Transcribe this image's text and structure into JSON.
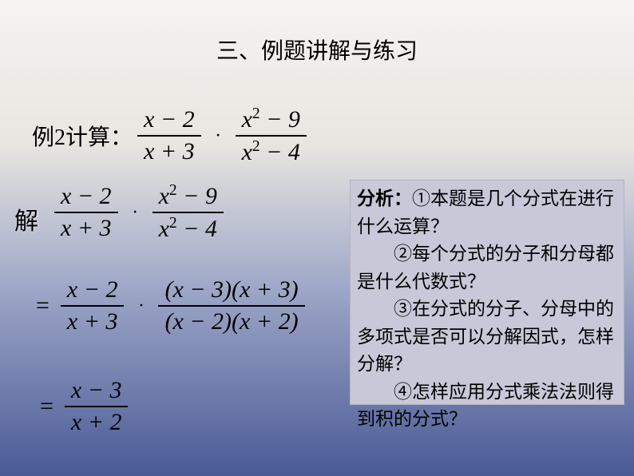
{
  "background_gradient": [
    "#f5f4f2",
    "#e8e6e0",
    "#9fa8c8",
    "#4a5a95"
  ],
  "title": "三、例题讲解与练习",
  "problem": {
    "label": "例2计算：",
    "frac1_num": "x − 2",
    "frac1_den": "x + 3",
    "frac2_num_base": "x",
    "frac2_num_exp": "2",
    "frac2_num_rest": " − 9",
    "frac2_den_base": "x",
    "frac2_den_exp": "2",
    "frac2_den_rest": " − 4"
  },
  "solution_label": "解",
  "step1": {
    "frac1_num": "x − 2",
    "frac1_den": "x + 3",
    "frac2_num_base": "x",
    "frac2_num_exp": "2",
    "frac2_num_rest": " − 9",
    "frac2_den_base": "x",
    "frac2_den_exp": "2",
    "frac2_den_rest": " − 4"
  },
  "step2": {
    "frac1_num": "x − 2",
    "frac1_den": "x + 3",
    "frac2_num": "(x − 3)(x + 3)",
    "frac2_den": "(x − 2)(x + 2)"
  },
  "step3": {
    "num": "x − 3",
    "den": "x + 2"
  },
  "analysis": {
    "label": "分析：",
    "q1": "①本题是几个分式在进行什么运算？",
    "q2": "②每个分式的分子和分母都是什么代数式？",
    "q3": "③在分式的分子、分母中的多项式是否可以分解因式，怎样分解？",
    "q4": "④怎样应用分式乘法法则得到积的分式？"
  },
  "styling": {
    "title_fontsize": 28,
    "math_fontsize": 30,
    "analysis_fontsize": 23,
    "analysis_bg": "#c8c8d9",
    "text_color": "#000000",
    "frac_line_color": "#000000",
    "math_font": "Times New Roman",
    "cjk_font": "SimSun"
  }
}
